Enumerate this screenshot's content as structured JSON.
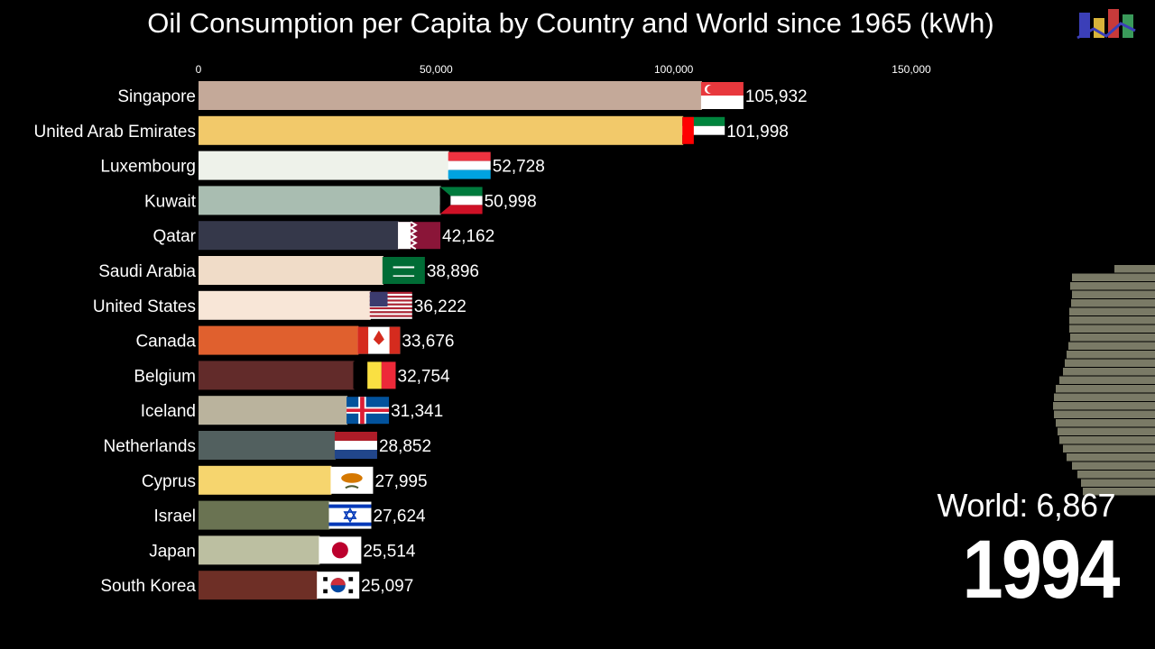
{
  "title": "Oil Consumption per Capita by Country and World since 1965 (kWh)",
  "world_label": "World: 6,867",
  "year": "1994",
  "colors": {
    "background": "#000000",
    "world_stack": "#7a7a66"
  },
  "chart_data": {
    "type": "bar",
    "orientation": "horizontal",
    "title": "Oil Consumption per Capita by Country and World since 1965 (kWh)",
    "xlim": [
      0,
      150000
    ],
    "x_ticks": [
      0,
      50000,
      100000,
      150000
    ],
    "x_tick_labels": [
      "0",
      "50,000",
      "100,000",
      "150,000"
    ],
    "categories": [
      "Singapore",
      "United Arab Emirates",
      "Luxembourg",
      "Kuwait",
      "Qatar",
      "Saudi Arabia",
      "United States",
      "Canada",
      "Belgium",
      "Iceland",
      "Netherlands",
      "Cyprus",
      "Israel",
      "Japan",
      "South Korea"
    ],
    "values": [
      105932,
      101998,
      52728,
      50998,
      42162,
      38896,
      36222,
      33676,
      32754,
      31341,
      28852,
      27995,
      27624,
      25514,
      25097
    ],
    "value_labels": [
      "105,932",
      "101,998",
      "52,728",
      "50,998",
      "42,162",
      "38,896",
      "36,222",
      "33,676",
      "32,754",
      "31,341",
      "28,852",
      "27,995",
      "27,624",
      "25,514",
      "25,097"
    ],
    "bar_colors": [
      "#c4a999",
      "#f2c96a",
      "#eef2ea",
      "#a9bdb1",
      "#35384a",
      "#f0dcc8",
      "#f8e6d7",
      "#e0602e",
      "#622b2a",
      "#bab39d",
      "#52605f",
      "#f6d56e",
      "#6a7352",
      "#bcbfa1",
      "#6e2f26"
    ],
    "flags": [
      "singapore-flag",
      "uae-flag",
      "luxembourg-flag",
      "kuwait-flag",
      "qatar-flag",
      "saudi-arabia-flag",
      "usa-flag",
      "canada-flag",
      "belgium-flag",
      "iceland-flag",
      "netherlands-flag",
      "cyprus-flag",
      "israel-flag",
      "japan-flag",
      "south-korea-flag"
    ],
    "grid": false,
    "legend": "none"
  }
}
